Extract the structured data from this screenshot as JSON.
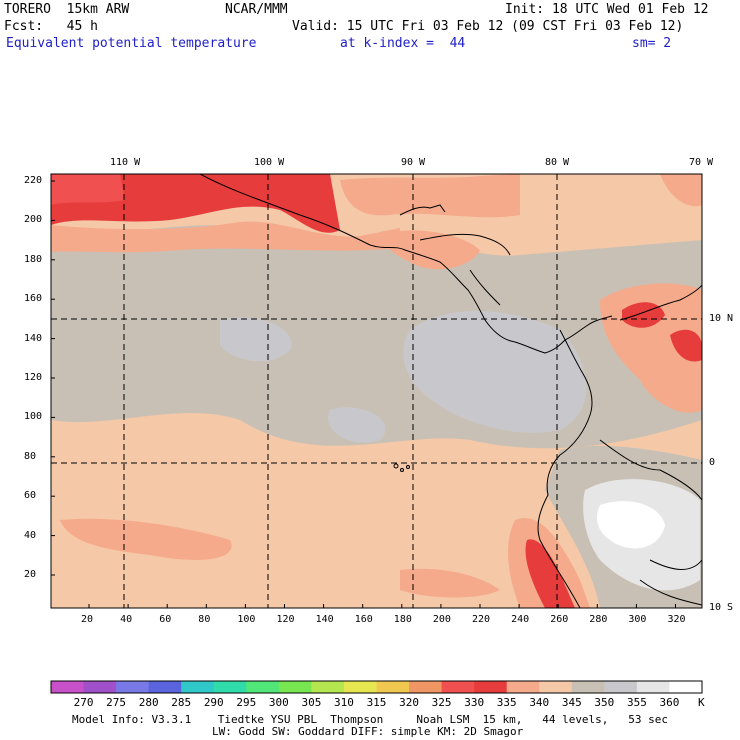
{
  "header": {
    "model": "TORERO  15km ARW",
    "org": "NCAR/MMM",
    "init": "Init: 18 UTC Wed 01 Feb 12",
    "fcst": "Fcst:   45 h",
    "valid": "Valid: 15 UTC Fri 03 Feb 12 (09 CST Fri 03 Feb 12)",
    "field": "Equivalent potential temperature",
    "level": "at k-index =  44",
    "smooth": "sm= 2"
  },
  "map": {
    "lon_labels": [
      "110 W",
      "100 W",
      "90 W",
      "80 W",
      "70 W"
    ],
    "lat_labels": [
      "10 N",
      "0",
      "10 S"
    ],
    "y_ticks": [
      "220",
      "200",
      "180",
      "160",
      "140",
      "120",
      "100",
      "80",
      "60",
      "40",
      "20"
    ],
    "x_ticks": [
      "20",
      "40",
      "60",
      "80",
      "100",
      "120",
      "140",
      "160",
      "180",
      "200",
      "220",
      "240",
      "260",
      "280",
      "300",
      "320"
    ]
  },
  "colorbar": {
    "levels": [
      "270",
      "275",
      "280",
      "285",
      "290",
      "295",
      "300",
      "305",
      "310",
      "315",
      "320",
      "325",
      "330",
      "335",
      "340",
      "345",
      "350",
      "355",
      "360"
    ],
    "unit": "K",
    "colors": [
      "#c850c8",
      "#a050c8",
      "#7878e6",
      "#5a64dc",
      "#30c8c8",
      "#30dcaa",
      "#50e678",
      "#78e650",
      "#b4e650",
      "#e6e650",
      "#f0c850",
      "#f09664",
      "#f05050",
      "#e63c3c",
      "#f5aa8c",
      "#f5c8a8",
      "#c8c0b4",
      "#c8c8cc",
      "#e6e6e6",
      "#ffffff"
    ]
  },
  "footer": {
    "line1": "Model Info: V3.3.1    Tiedtke YSU PBL  Thompson     Noah LSM  15 km,   44 levels,   53 sec",
    "line2": "LW: Godd SW: Goddard DIFF: simple KM: 2D Smagor"
  }
}
